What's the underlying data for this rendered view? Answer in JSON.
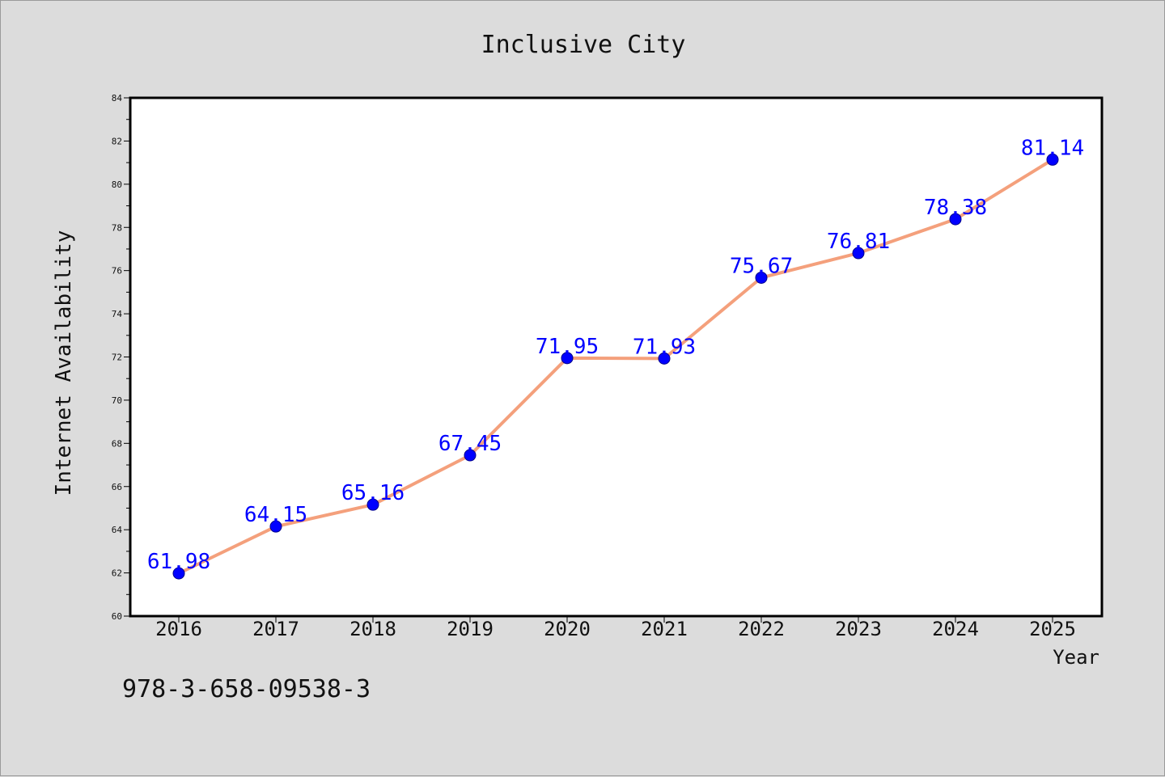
{
  "chart_data": {
    "type": "line",
    "title": "Inclusive City",
    "xlabel": "Year",
    "ylabel": "Internet Availability",
    "categories": [
      "2016",
      "2017",
      "2018",
      "2019",
      "2020",
      "2021",
      "2022",
      "2023",
      "2024",
      "2025"
    ],
    "values": [
      61.98,
      64.15,
      65.16,
      67.45,
      71.95,
      71.93,
      75.67,
      76.81,
      78.38,
      81.14
    ],
    "data_labels": [
      "61.98",
      "64.15",
      "65.16",
      "67.45",
      "71.95",
      "71.93",
      "75.67",
      "76.81",
      "78.38",
      "81.14"
    ],
    "ylim": [
      60,
      84
    ],
    "yticks": [
      "60",
      "62",
      "64",
      "66",
      "68",
      "70",
      "72",
      "74",
      "76",
      "78",
      "80",
      "82",
      "84"
    ],
    "grid": false,
    "line_color": "#f4a07c",
    "marker_color": "#0000ff",
    "label_color": "#0000ff"
  },
  "footer": {
    "isbn": "978-3-658-09538-3"
  }
}
